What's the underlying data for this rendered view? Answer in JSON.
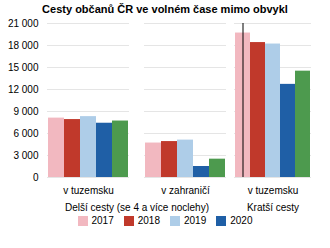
{
  "chart_data": [
    {
      "type": "bar",
      "title": "Cesty občanů ČR ve volném čase mimo obvykl",
      "xlabel": "Delší cesty (se 4 a více noclehy)",
      "categories": [
        "v tuzemsku",
        "v zahraničí"
      ],
      "series": [
        {
          "name": "2017",
          "color": "#f2b8c0",
          "values": [
            8100,
            4700
          ]
        },
        {
          "name": "2018",
          "color": "#c0392b",
          "values": [
            7900,
            4900
          ]
        },
        {
          "name": "2019",
          "color": "#aecde8",
          "values": [
            8300,
            5100
          ]
        },
        {
          "name": "2020",
          "color": "#1f5fa6",
          "values": [
            7400,
            1500
          ]
        },
        {
          "color": "#4d9a4e",
          "values": [
            7700,
            2500
          ]
        }
      ],
      "ylim": [
        0,
        21000
      ],
      "yticks": [
        0,
        {
          "value": 3000,
          "label": "3 000"
        },
        {
          "value": 6000,
          "label": "6 000"
        },
        {
          "value": 9000,
          "label": "9 000"
        },
        {
          "value": 12000,
          "label": "12 000"
        },
        {
          "value": 15000,
          "label": "15 000"
        },
        {
          "value": 18000,
          "label": "18 000"
        },
        {
          "value": 21000,
          "label": "21 000"
        }
      ],
      "grid": true,
      "legend": "bottom"
    },
    {
      "type": "bar",
      "xlabel": "Kratší cesty",
      "categories": [
        "v tuzemsku"
      ],
      "series": [
        {
          "name": "2017",
          "color": "#f2b8c0",
          "values": [
            19700
          ]
        },
        {
          "name": "2018",
          "color": "#c0392b",
          "values": [
            18400
          ]
        },
        {
          "name": "2019",
          "color": "#aecde8",
          "values": [
            18200
          ]
        },
        {
          "name": "2020",
          "color": "#1f5fa6",
          "values": [
            12700
          ]
        },
        {
          "color": "#4d9a4e",
          "values": [
            14500
          ]
        }
      ],
      "ylim": [
        0,
        21000
      ],
      "yticks": [
        0,
        {
          "value": 3000,
          "label": "3 000"
        },
        {
          "value": 6000,
          "label": "6 000"
        },
        {
          "value": 9000,
          "label": "9 000"
        },
        {
          "value": 12000,
          "label": "12 000"
        },
        {
          "value": 15000,
          "label": "15 000"
        },
        {
          "value": 18000,
          "label": "18 000"
        },
        {
          "value": 21000,
          "label": "21 000"
        }
      ],
      "grid": true,
      "tick_labels": "x"
    }
  ]
}
